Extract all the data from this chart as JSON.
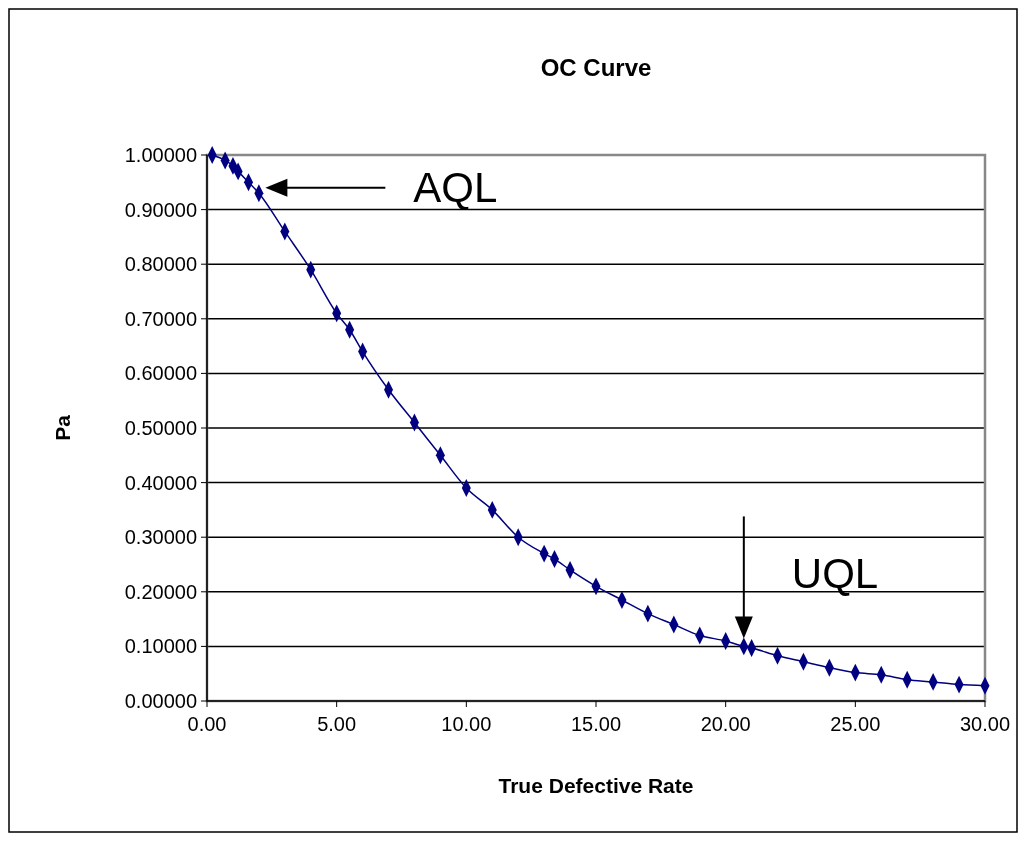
{
  "chart_data": {
    "type": "line",
    "title": "OC Curve",
    "xlabel": "True Defective Rate",
    "ylabel": "Pa",
    "x": [
      0.2,
      0.7,
      1.0,
      1.2,
      1.6,
      2.0,
      3,
      4,
      5,
      5.5,
      6,
      7,
      8,
      9,
      10,
      11,
      12,
      13,
      13.4,
      14,
      15,
      16,
      17,
      18,
      19,
      20,
      20.7,
      21,
      22,
      23,
      24,
      25,
      26,
      27,
      28,
      29,
      30
    ],
    "series": [
      {
        "color": "#000080",
        "values": [
          1.0,
          0.99,
          0.98,
          0.97,
          0.95,
          0.93,
          0.86,
          0.79,
          0.71,
          0.68,
          0.64,
          0.57,
          0.51,
          0.45,
          0.39,
          0.35,
          0.3,
          0.27,
          0.26,
          0.24,
          0.21,
          0.185,
          0.16,
          0.14,
          0.12,
          0.11,
          0.1,
          0.097,
          0.083,
          0.072,
          0.061,
          0.052,
          0.048,
          0.039,
          0.035,
          0.03,
          0.028
        ]
      }
    ],
    "xlim": [
      0,
      30
    ],
    "xticks": [
      {
        "value": 0,
        "label": "0.00"
      },
      {
        "value": 5,
        "label": "5.00"
      },
      {
        "value": 10,
        "label": "10.00"
      },
      {
        "value": 15,
        "label": "15.00"
      },
      {
        "value": 20,
        "label": "20.00"
      },
      {
        "value": 25,
        "label": "25.00"
      },
      {
        "value": 30,
        "label": "30.00"
      }
    ],
    "ylim": [
      0,
      1
    ],
    "yticks": [
      {
        "value": 0,
        "label": "0.00000"
      },
      {
        "value": 0.1,
        "label": "0.10000"
      },
      {
        "value": 0.2,
        "label": "0.20000"
      },
      {
        "value": 0.3,
        "label": "0.30000"
      },
      {
        "value": 0.4,
        "label": "0.40000"
      },
      {
        "value": 0.5,
        "label": "0.50000"
      },
      {
        "value": 0.6,
        "label": "0.60000"
      },
      {
        "value": 0.7,
        "label": "0.70000"
      },
      {
        "value": 0.8,
        "label": "0.80000"
      },
      {
        "value": 0.9,
        "label": "0.90000"
      },
      {
        "value": 1,
        "label": "1.00000"
      }
    ],
    "grid": "y",
    "marker": "diamond",
    "line_style": "solid",
    "annotations": [
      "AQL",
      {
        "text": "UQL",
        "x": 20.7,
        "y": 0.1
      }
    ]
  }
}
